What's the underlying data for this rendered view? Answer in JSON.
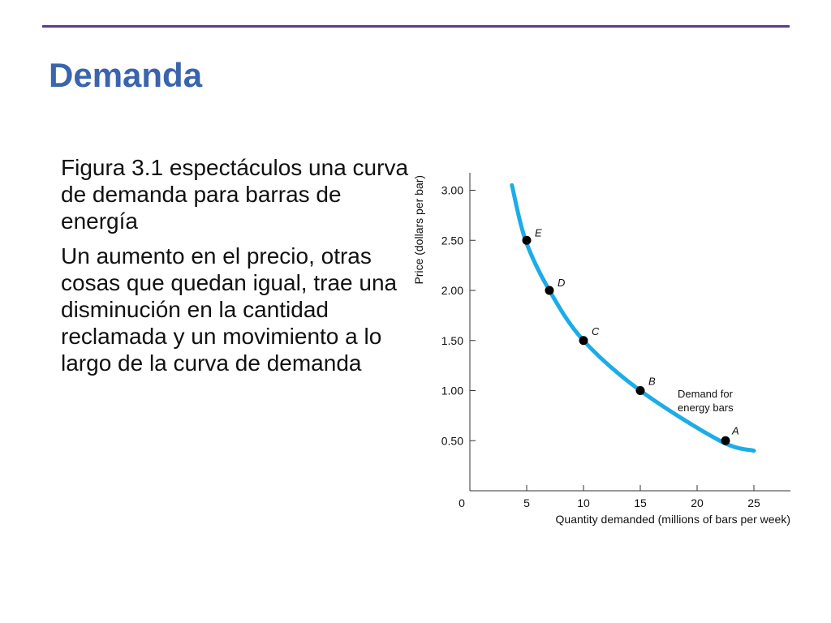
{
  "slide": {
    "title": "Demanda",
    "paragraphs": [
      "Figura 3.1 espectáculos una curva de demanda para barras de energía",
      "Un aumento en el precio, otras cosas que quedan igual, trae una disminución en la cantidad reclamada y un movimiento a lo largo de la curva de demanda"
    ],
    "accent_color": "#3a64ad",
    "rule_color": "#5b3d8e"
  },
  "chart_data": {
    "type": "line",
    "xlabel": "Quantity demanded (millions of bars per week)",
    "ylabel": "Price (dollars per bar)",
    "xlim": [
      0,
      25
    ],
    "ylim": [
      0,
      3.0
    ],
    "x_ticks": [
      "0",
      "5",
      "10",
      "15",
      "20",
      "25"
    ],
    "y_ticks": [
      "0.50",
      "1.00",
      "1.50",
      "2.00",
      "2.50",
      "3.00"
    ],
    "curve_color": "#1cace8",
    "curve_label": [
      "Demand for",
      "energy bars"
    ],
    "curve": [
      {
        "x": 3.7,
        "y": 3.05
      },
      {
        "x": 4.9,
        "y": 2.5
      },
      {
        "x": 7.0,
        "y": 2.0
      },
      {
        "x": 10.0,
        "y": 1.5
      },
      {
        "x": 15.0,
        "y": 1.0
      },
      {
        "x": 22.0,
        "y": 0.5
      },
      {
        "x": 25.0,
        "y": 0.4
      }
    ],
    "points": [
      {
        "label": "E",
        "x": 5,
        "y": 2.5
      },
      {
        "label": "D",
        "x": 7,
        "y": 2.0
      },
      {
        "label": "C",
        "x": 10,
        "y": 1.5
      },
      {
        "label": "B",
        "x": 15,
        "y": 1.0
      },
      {
        "label": "A",
        "x": 22.5,
        "y": 0.5
      }
    ],
    "grid": false
  }
}
